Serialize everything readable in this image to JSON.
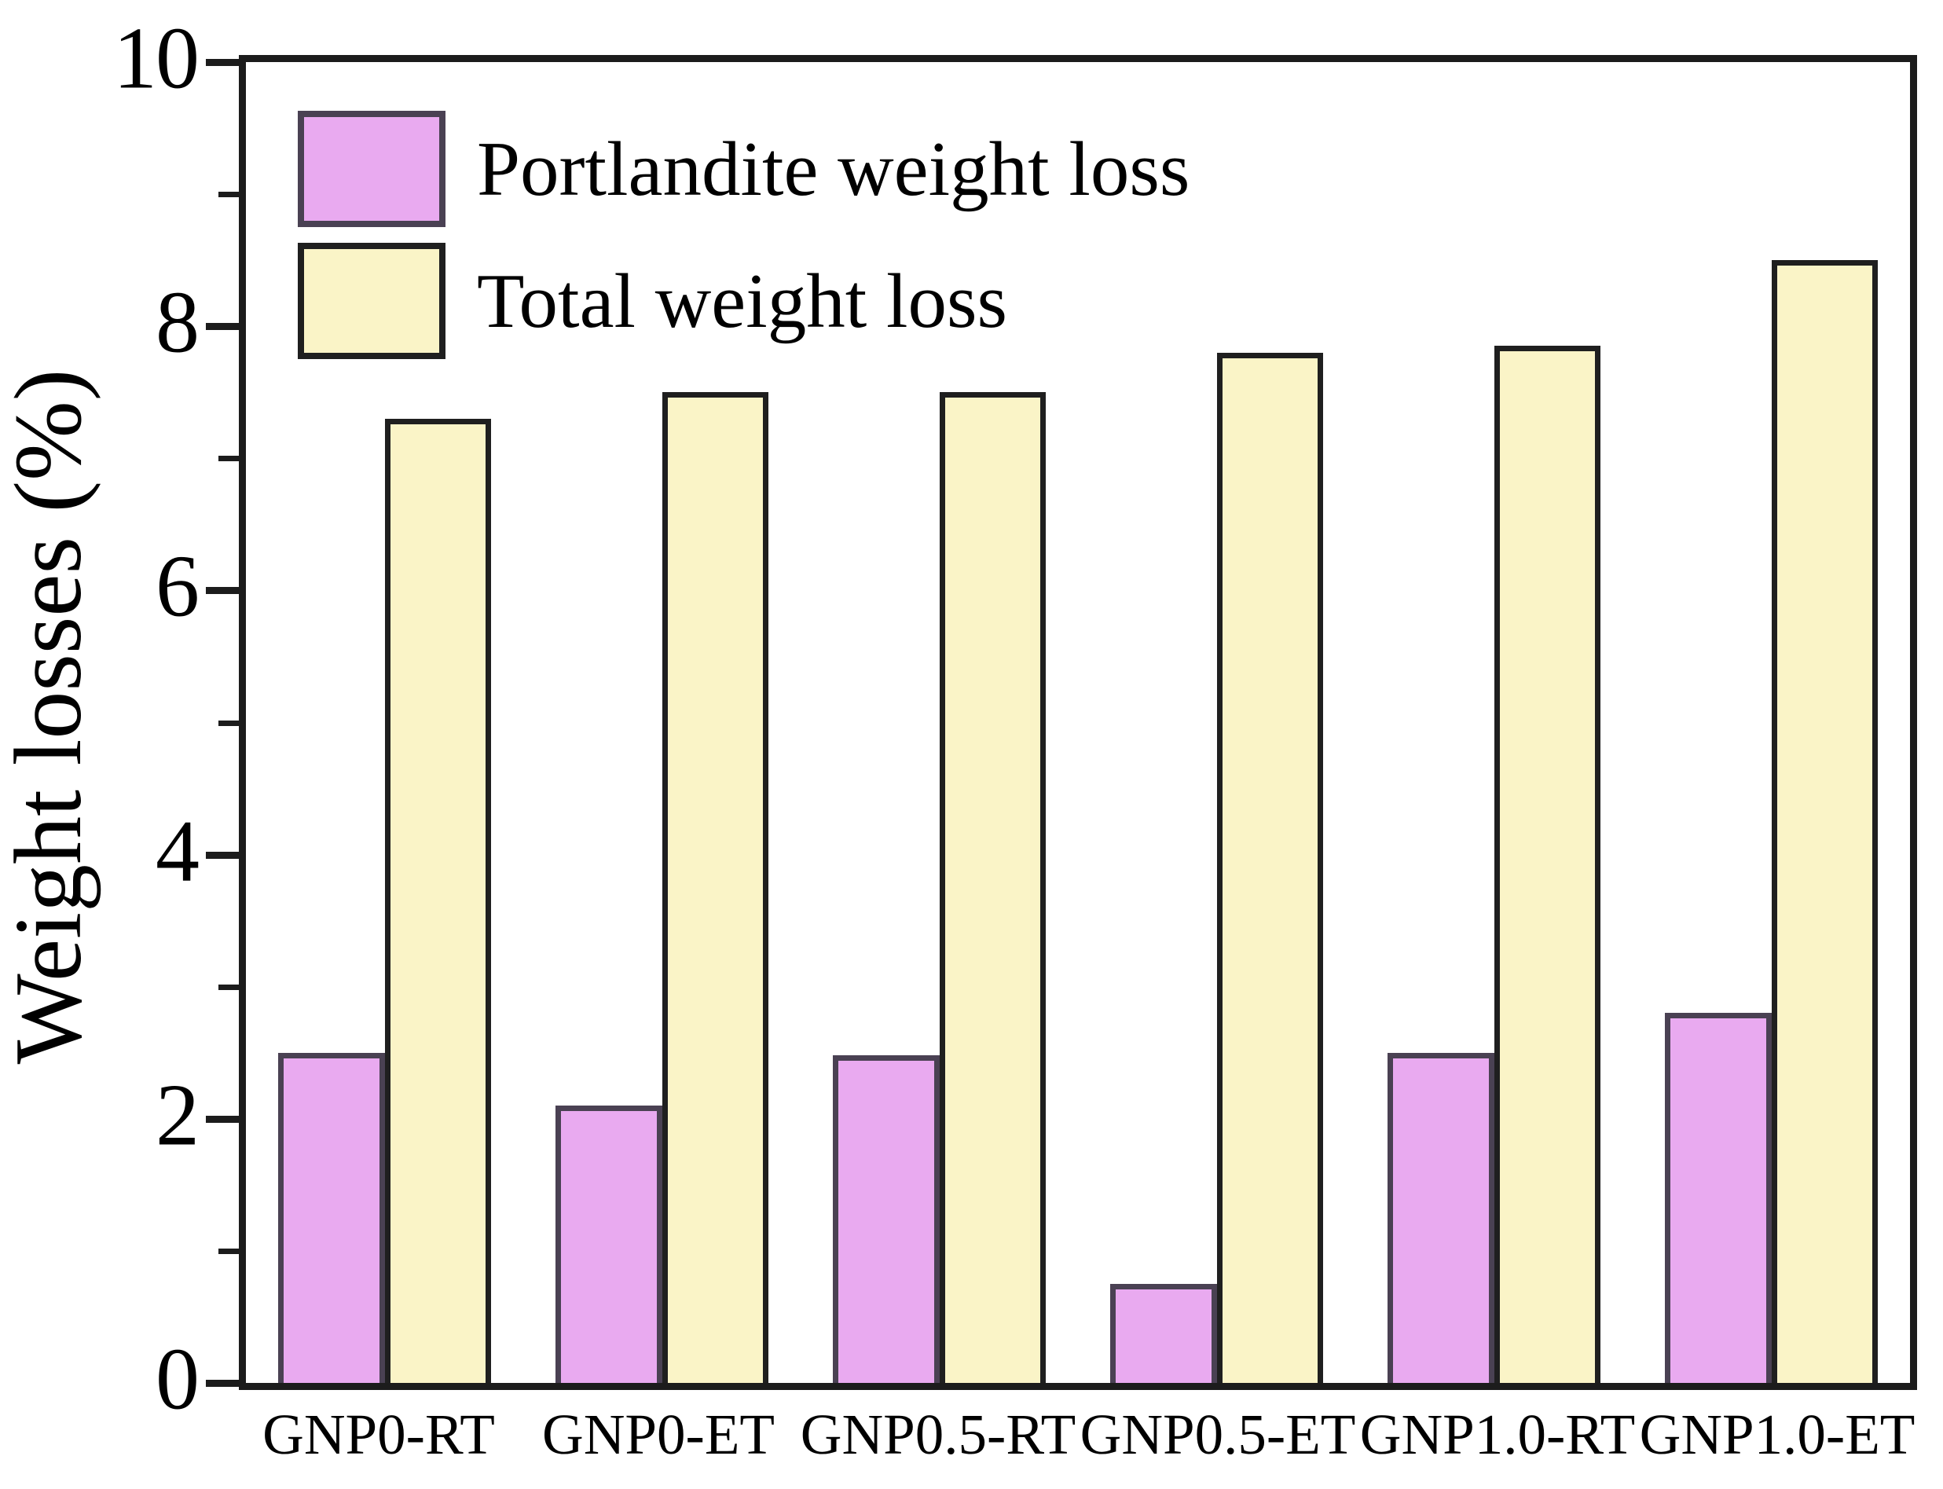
{
  "chart_data": {
    "type": "bar",
    "title": "",
    "xlabel": "",
    "ylabel": "Weight losses (%)",
    "ylim": [
      0,
      10
    ],
    "yticks_major": [
      0,
      2,
      4,
      6,
      8,
      10
    ],
    "yticks_minor": [
      1,
      3,
      5,
      7,
      9
    ],
    "grid": false,
    "legend_position": "top-left",
    "frame": true,
    "categories": [
      "GNP0-RT",
      "GNP0-ET",
      "GNP0.5-RT",
      "GNP0.5-ET",
      "GNP1.0-RT",
      "GNP1.0-ET"
    ],
    "series": [
      {
        "name": "Portlandite weight loss",
        "values": [
          2.5,
          2.1,
          2.48,
          0.75,
          2.5,
          2.8
        ],
        "fill_color": "#e9aaf0",
        "border_color": "#4a4153"
      },
      {
        "name": "Total weight loss",
        "values": [
          7.3,
          7.5,
          7.5,
          7.8,
          7.85,
          8.5
        ],
        "fill_color": "#faf4c7",
        "border_color": "#1f1f1f"
      }
    ],
    "axis_color": "#1c1c1c",
    "text_color": "#000000"
  }
}
